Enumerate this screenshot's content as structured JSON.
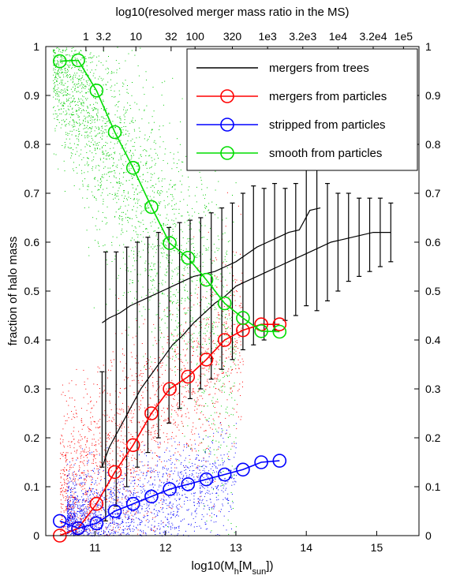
{
  "chart_data": {
    "type": "line",
    "title": "",
    "xlabel": "log10(M_h [M_sun])",
    "xlabel_parts": {
      "main": "log10(M",
      "sub1": "h",
      "mid": "[M",
      "sub2": "sun",
      "end": "])"
    },
    "ylabel": "fraction of halo mass",
    "top_xlabel": "log10(resolved merger mass ratio in the MS)",
    "xlim": [
      10.3,
      15.6
    ],
    "ylim": [
      0,
      1
    ],
    "grid": false,
    "legend_position": "top-right",
    "x_ticks": [
      {
        "value": 11,
        "label": "11"
      },
      {
        "value": 12,
        "label": "12"
      },
      {
        "value": 13,
        "label": "13"
      },
      {
        "value": 14,
        "label": "14"
      },
      {
        "value": 15,
        "label": "15"
      }
    ],
    "y_ticks": [
      {
        "value": 0,
        "label": "0"
      },
      {
        "value": 0.1,
        "label": "0.1"
      },
      {
        "value": 0.2,
        "label": "0.2"
      },
      {
        "value": 0.3,
        "label": "0.3"
      },
      {
        "value": 0.4,
        "label": "0.4"
      },
      {
        "value": 0.5,
        "label": "0.5"
      },
      {
        "value": 0.6,
        "label": "0.6"
      },
      {
        "value": 0.7,
        "label": "0.7"
      },
      {
        "value": 0.8,
        "label": "0.8"
      },
      {
        "value": 0.9,
        "label": "0.9"
      },
      {
        "value": 1,
        "label": "1"
      }
    ],
    "top_ticks": [
      {
        "value": 10.87,
        "label": "1"
      },
      {
        "value": 11.12,
        "label": "3.2"
      },
      {
        "value": 11.58,
        "label": "10"
      },
      {
        "value": 12.08,
        "label": "32"
      },
      {
        "value": 12.42,
        "label": "100"
      },
      {
        "value": 12.95,
        "label": "320"
      },
      {
        "value": 13.45,
        "label": "1e3"
      },
      {
        "value": 13.95,
        "label": "3.2e3"
      },
      {
        "value": 14.45,
        "label": "1e4"
      },
      {
        "value": 14.95,
        "label": "3.2e4"
      },
      {
        "value": 15.38,
        "label": "1e5"
      }
    ],
    "series": [
      {
        "name": "mergers from trees",
        "color": "#000000",
        "marker": "none",
        "curves": [
          {
            "x": [
              11.1,
              11.2,
              11.35,
              11.5,
              11.65,
              11.8,
              11.95,
              12.1,
              12.25,
              12.4,
              12.55,
              12.7,
              12.85,
              13.0,
              13.15,
              13.3,
              13.45,
              13.6,
              13.75,
              13.9,
              14.05,
              14.2
            ],
            "y": [
              0.435,
              0.445,
              0.455,
              0.47,
              0.48,
              0.49,
              0.5,
              0.51,
              0.52,
              0.53,
              0.535,
              0.54,
              0.55,
              0.56,
              0.575,
              0.59,
              0.6,
              0.61,
              0.62,
              0.625,
              0.665,
              0.67
            ]
          },
          {
            "x": [
              11.1,
              11.2,
              11.35,
              11.5,
              11.65,
              11.8,
              11.95,
              12.1,
              12.25,
              12.4,
              12.55,
              12.7,
              12.85,
              13.0,
              13.15,
              13.3,
              13.45,
              13.6,
              13.75,
              13.9,
              14.05,
              14.2,
              14.35,
              14.5,
              14.65,
              14.8,
              14.95,
              15.1,
              15.2
            ],
            "y": [
              0.14,
              0.18,
              0.22,
              0.26,
              0.3,
              0.33,
              0.36,
              0.39,
              0.41,
              0.435,
              0.455,
              0.475,
              0.49,
              0.51,
              0.52,
              0.53,
              0.54,
              0.55,
              0.56,
              0.57,
              0.58,
              0.59,
              0.6,
              0.605,
              0.61,
              0.615,
              0.62,
              0.62,
              0.62
            ]
          }
        ],
        "errorbars": [
          {
            "x": 11.1,
            "lo": 0.14,
            "hi": 0.335
          },
          {
            "x": 11.15,
            "lo": 0.03,
            "hi": 0.58
          },
          {
            "x": 11.3,
            "lo": 0.06,
            "hi": 0.58
          },
          {
            "x": 11.45,
            "lo": 0.1,
            "hi": 0.59
          },
          {
            "x": 11.6,
            "lo": 0.14,
            "hi": 0.6
          },
          {
            "x": 11.75,
            "lo": 0.17,
            "hi": 0.61
          },
          {
            "x": 11.9,
            "lo": 0.2,
            "hi": 0.62
          },
          {
            "x": 12.05,
            "lo": 0.23,
            "hi": 0.63
          },
          {
            "x": 12.2,
            "lo": 0.26,
            "hi": 0.64
          },
          {
            "x": 12.35,
            "lo": 0.28,
            "hi": 0.645
          },
          {
            "x": 12.5,
            "lo": 0.3,
            "hi": 0.65
          },
          {
            "x": 12.65,
            "lo": 0.32,
            "hi": 0.66
          },
          {
            "x": 12.8,
            "lo": 0.34,
            "hi": 0.67
          },
          {
            "x": 12.95,
            "lo": 0.36,
            "hi": 0.68
          },
          {
            "x": 13.1,
            "lo": 0.38,
            "hi": 0.7
          },
          {
            "x": 13.25,
            "lo": 0.39,
            "hi": 0.715
          },
          {
            "x": 13.4,
            "lo": 0.4,
            "hi": 0.71
          },
          {
            "x": 13.55,
            "lo": 0.42,
            "hi": 0.72
          },
          {
            "x": 13.7,
            "lo": 0.44,
            "hi": 0.71
          },
          {
            "x": 13.85,
            "lo": 0.45,
            "hi": 0.72
          },
          {
            "x": 14.0,
            "lo": 0.47,
            "hi": 0.8
          },
          {
            "x": 14.15,
            "lo": 0.46,
            "hi": 0.8
          },
          {
            "x": 14.3,
            "lo": 0.48,
            "hi": 0.72
          },
          {
            "x": 14.45,
            "lo": 0.5,
            "hi": 0.7
          },
          {
            "x": 14.6,
            "lo": 0.52,
            "hi": 0.7
          },
          {
            "x": 14.75,
            "lo": 0.53,
            "hi": 0.69
          },
          {
            "x": 14.9,
            "lo": 0.54,
            "hi": 0.69
          },
          {
            "x": 15.05,
            "lo": 0.55,
            "hi": 0.69
          },
          {
            "x": 15.2,
            "lo": 0.56,
            "hi": 0.68
          }
        ]
      },
      {
        "name": "mergers from particles",
        "color": "#ff0000",
        "marker": "circle",
        "x": [
          10.5,
          10.76,
          11.02,
          11.28,
          11.54,
          11.8,
          12.06,
          12.32,
          12.58,
          12.84,
          13.1,
          13.36,
          13.62
        ],
        "y": [
          0.0,
          0.015,
          0.065,
          0.13,
          0.185,
          0.25,
          0.3,
          0.325,
          0.36,
          0.4,
          0.42,
          0.432,
          0.432
        ]
      },
      {
        "name": "stripped from particles",
        "color": "#0000ff",
        "marker": "circle",
        "x": [
          10.5,
          10.76,
          11.02,
          11.28,
          11.54,
          11.8,
          12.06,
          12.32,
          12.58,
          12.84,
          13.1,
          13.36,
          13.62
        ],
        "y": [
          0.03,
          0.015,
          0.025,
          0.05,
          0.065,
          0.08,
          0.095,
          0.105,
          0.115,
          0.125,
          0.135,
          0.15,
          0.153
        ]
      },
      {
        "name": "smooth from particles",
        "color": "#00dd00",
        "marker": "circle",
        "x": [
          10.5,
          10.76,
          11.02,
          11.28,
          11.54,
          11.8,
          12.06,
          12.32,
          12.58,
          12.84,
          13.1,
          13.36,
          13.62
        ],
        "y": [
          0.97,
          0.972,
          0.91,
          0.825,
          0.752,
          0.672,
          0.598,
          0.568,
          0.523,
          0.475,
          0.445,
          0.418,
          0.417
        ]
      }
    ]
  }
}
